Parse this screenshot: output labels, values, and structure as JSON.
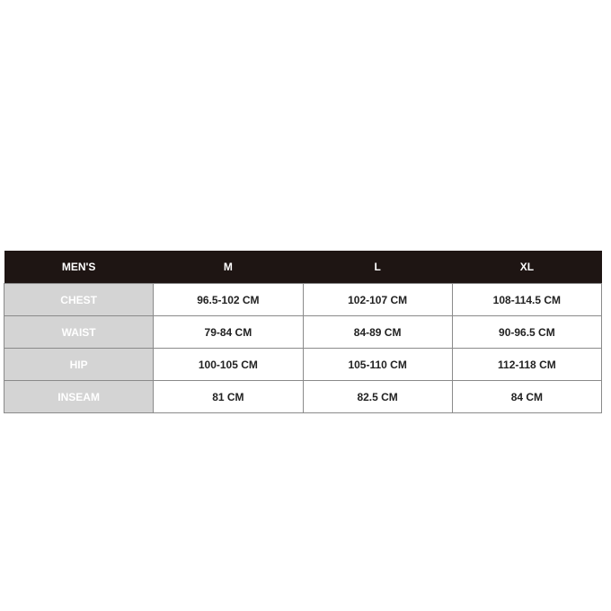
{
  "header": [
    "MEN'S",
    "M",
    "L",
    "XL"
  ],
  "rows": [
    {
      "label": "CHEST",
      "values": [
        "96.5-102 CM",
        "102-107 CM",
        "108-114.5 CM"
      ]
    },
    {
      "label": "WAIST",
      "values": [
        "79-84 CM",
        "84-89 CM",
        "90-96.5 CM"
      ]
    },
    {
      "label": "HIP",
      "values": [
        "100-105 CM",
        "105-110 CM",
        "112-118 CM"
      ]
    },
    {
      "label": "INSEAM",
      "values": [
        "81 CM",
        "82.5 CM",
        "84 CM"
      ]
    }
  ],
  "colors": {
    "header_bg": "#1e1513",
    "label_bg": "#d4d4d4"
  }
}
